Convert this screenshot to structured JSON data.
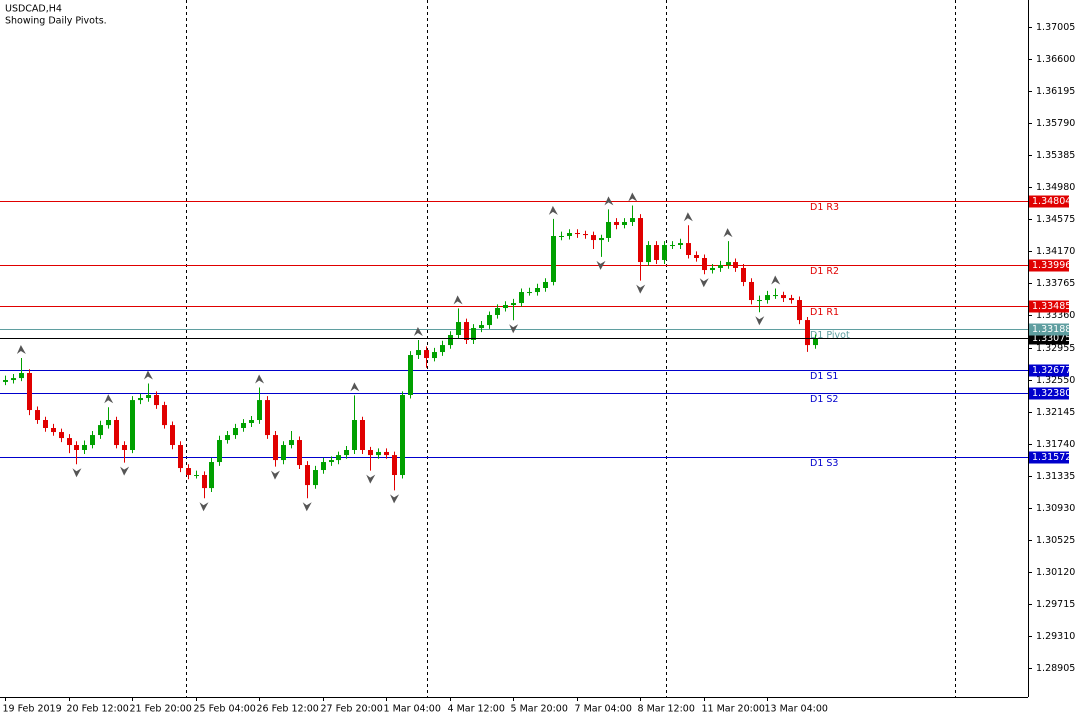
{
  "chart_data": {
    "type": "candlestick",
    "title": "USDCAD,H4",
    "subtitle": "Showing Daily Pivots.",
    "ylim": [
      1.28539,
      1.37346
    ],
    "yticks": [
      1.37005,
      {
        "value": 1.366,
        "label": "1.36600"
      },
      1.36195,
      {
        "value": 1.3579,
        "label": "1.35790"
      },
      1.35385,
      {
        "value": 1.3498,
        "label": "1.34980"
      },
      1.34575,
      {
        "value": 1.3417,
        "label": "1.34170"
      },
      1.33765,
      {
        "value": 1.3336,
        "label": "1.33360"
      },
      1.32955,
      {
        "value": 1.3255,
        "label": "1.32550"
      },
      1.32145,
      {
        "value": 1.3174,
        "label": "1.31740"
      },
      1.31335,
      {
        "value": 1.3093,
        "label": "1.30930"
      },
      1.30525,
      {
        "value": 1.3012,
        "label": "1.30120"
      },
      1.29715,
      {
        "value": 1.2931,
        "label": "1.29310"
      },
      1.28905
    ],
    "bull_color": "#00a000",
    "bear_color": "#e00000",
    "categories": [
      "19 Feb 2019",
      null,
      null,
      null,
      null,
      null,
      null,
      null,
      "20 Feb 12:00",
      null,
      null,
      null,
      null,
      null,
      null,
      null,
      "21 Feb 20:00",
      null,
      null,
      null,
      null,
      null,
      null,
      null,
      "25 Feb 04:00",
      null,
      null,
      null,
      null,
      null,
      null,
      null,
      "26 Feb 12:00",
      null,
      null,
      null,
      null,
      null,
      null,
      null,
      "27 Feb 20:00",
      null,
      null,
      null,
      null,
      null,
      null,
      null,
      "1 Mar 04:00",
      null,
      null,
      null,
      null,
      null,
      null,
      null,
      "4 Mar 12:00",
      null,
      null,
      null,
      null,
      null,
      null,
      null,
      "5 Mar 20:00",
      null,
      null,
      null,
      null,
      null,
      null,
      null,
      "7 Mar 04:00",
      null,
      null,
      null,
      null,
      null,
      null,
      null,
      "8 Mar 12:00",
      null,
      null,
      null,
      null,
      null,
      null,
      null,
      "11 Mar 20:00",
      null,
      null,
      null,
      null,
      null,
      null,
      null,
      "13 Mar 04:00",
      null,
      null,
      null,
      null,
      null,
      null
    ],
    "open": [
      1.3252,
      1.32544,
      1.32569,
      1.32633,
      1.32165,
      1.32039,
      1.31938,
      1.31887,
      1.31811,
      1.31723,
      1.3166,
      1.31723,
      1.31849,
      1.31975,
      1.32039,
      1.31723,
      1.3166,
      1.32291,
      1.32317,
      1.32355,
      1.32228,
      1.31975,
      1.31723,
      1.31432,
      1.31344,
      1.31344,
      1.31179,
      1.31508,
      1.31786,
      1.31849,
      1.31938,
      1.32001,
      1.32039,
      1.32291,
      1.31849,
      1.31533,
      1.31723,
      1.31786,
      1.3147,
      1.31217,
      1.31407,
      1.31508,
      1.31533,
      1.31596,
      1.3166,
      1.32039,
      1.3166,
      1.31596,
      1.31635,
      1.31596,
      1.31344,
      1.32355,
      1.3286,
      1.32923,
      1.32822,
      1.32898,
      1.32986,
      1.33113,
      1.33277,
      1.3305,
      1.33201,
      1.33239,
      1.33366,
      1.33454,
      1.33492,
      1.33517,
      1.33656,
      1.33656,
      1.33707,
      1.33783,
      1.34364,
      1.34364,
      1.34402,
      1.34389,
      1.34376,
      1.34313,
      1.34339,
      1.34541,
      1.34503,
      1.34541,
      1.34591,
      1.34035,
      1.3425,
      1.34061,
      1.3425,
      1.3425,
      1.34275,
      1.34124,
      1.34086,
      1.33934,
      1.3396,
      1.33997,
      1.34035,
      1.3396,
      1.33783,
      1.33555,
      1.33555,
      1.33618,
      1.33618,
      1.3358,
      1.33555,
      1.33302,
      1.32986
    ],
    "high": [
      1.326,
      1.3262,
      1.32822,
      1.3268,
      1.3221,
      1.3208,
      1.3199,
      1.3193,
      1.3186,
      1.3177,
      1.3178,
      1.319,
      1.3203,
      1.322,
      1.3208,
      1.3177,
      1.3234,
      1.3237,
      1.325,
      1.324,
      1.3227,
      1.3202,
      1.3177,
      1.3148,
      1.314,
      1.3139,
      1.3156,
      1.3184,
      1.319,
      1.3199,
      1.3205,
      1.3209,
      1.3245,
      1.3234,
      1.319,
      1.3177,
      1.319,
      1.3183,
      1.3152,
      1.3146,
      1.3156,
      1.3158,
      1.3164,
      1.3171,
      1.3235,
      1.3208,
      1.317,
      1.3168,
      1.3168,
      1.3164,
      1.324,
      1.3291,
      1.3305,
      1.3297,
      1.3295,
      1.3304,
      1.3316,
      1.3345,
      1.3332,
      1.3325,
      1.3329,
      1.3341,
      1.335,
      1.3354,
      1.3357,
      1.337,
      1.3371,
      1.3376,
      1.3383,
      1.3458,
      1.3442,
      1.3445,
      1.3445,
      1.3443,
      1.3442,
      1.3438,
      1.347,
      1.3459,
      1.3459,
      1.3475,
      1.3464,
      1.343,
      1.343,
      1.343,
      1.343,
      1.3433,
      1.345,
      1.3417,
      1.3413,
      1.3401,
      1.3405,
      1.343,
      1.3408,
      1.3401,
      1.3383,
      1.3361,
      1.3367,
      1.337,
      1.3366,
      1.3362,
      1.336,
      1.3334,
      1.3312
    ],
    "low": [
      1.3248,
      1.325,
      1.3253,
      1.321,
      1.3199,
      1.3189,
      1.3184,
      1.3176,
      1.3162,
      1.3148,
      1.3161,
      1.3168,
      1.318,
      1.3193,
      1.3168,
      1.315,
      1.3162,
      1.3224,
      1.3227,
      1.3218,
      1.3193,
      1.3167,
      1.3138,
      1.3129,
      1.313,
      1.3105,
      1.3113,
      1.3146,
      1.3174,
      1.318,
      1.3189,
      1.3195,
      1.3199,
      1.318,
      1.3145,
      1.3148,
      1.3168,
      1.3142,
      1.3105,
      1.3117,
      1.3136,
      1.3146,
      1.3148,
      1.3155,
      1.3161,
      1.3161,
      1.314,
      1.3155,
      1.3155,
      1.3115,
      1.313,
      1.3231,
      1.3281,
      1.327,
      1.3278,
      1.3285,
      1.3294,
      1.3307,
      1.33,
      1.33,
      1.3315,
      1.3319,
      1.3332,
      1.3341,
      1.333,
      1.3347,
      1.3361,
      1.3361,
      1.3366,
      1.3374,
      1.3431,
      1.3432,
      1.3434,
      1.3433,
      1.342,
      1.341,
      1.3429,
      1.3445,
      1.3446,
      1.3449,
      1.338,
      1.3399,
      1.3401,
      1.3401,
      1.342,
      1.342,
      1.3408,
      1.3404,
      1.3388,
      1.3389,
      1.3391,
      1.3395,
      1.3391,
      1.3373,
      1.335,
      1.334,
      1.3351,
      1.3357,
      1.3353,
      1.3351,
      1.3325,
      1.329,
      1.3294
    ],
    "close": [
      1.32544,
      1.32569,
      1.32633,
      1.32165,
      1.32039,
      1.31938,
      1.31887,
      1.31811,
      1.31723,
      1.3166,
      1.31723,
      1.31849,
      1.31975,
      1.32039,
      1.31723,
      1.3166,
      1.32291,
      1.32317,
      1.32355,
      1.32228,
      1.31975,
      1.31723,
      1.31432,
      1.31344,
      1.31344,
      1.31179,
      1.31508,
      1.31786,
      1.31849,
      1.31938,
      1.32001,
      1.32039,
      1.32291,
      1.31849,
      1.31533,
      1.31723,
      1.31786,
      1.3147,
      1.31217,
      1.31407,
      1.31508,
      1.31533,
      1.31596,
      1.3166,
      1.32039,
      1.3166,
      1.31596,
      1.31635,
      1.31596,
      1.31344,
      1.32355,
      1.3286,
      1.32923,
      1.32822,
      1.32898,
      1.32986,
      1.33113,
      1.33277,
      1.3305,
      1.33201,
      1.33239,
      1.33366,
      1.33454,
      1.33492,
      1.33517,
      1.33656,
      1.33656,
      1.33707,
      1.33783,
      1.34364,
      1.34364,
      1.34402,
      1.34389,
      1.34376,
      1.34313,
      1.34339,
      1.34541,
      1.34503,
      1.34541,
      1.34591,
      1.34035,
      1.3425,
      1.34061,
      1.3425,
      1.3425,
      1.34275,
      1.34124,
      1.34086,
      1.33934,
      1.3396,
      1.33997,
      1.34035,
      1.3396,
      1.33783,
      1.33555,
      1.33555,
      1.33618,
      1.33618,
      1.3358,
      1.33555,
      1.33302,
      1.32986,
      1.33075
    ],
    "pivots": [
      {
        "name": "D1 R3",
        "value": 1.34804,
        "color": "#e00000"
      },
      {
        "name": "D1 R2",
        "value": 1.33996,
        "color": "#e00000"
      },
      {
        "name": "D1 R1",
        "value": 1.33485,
        "color": "#e00000"
      },
      {
        "name": "D1 Pivot",
        "value": 1.33188,
        "color": "#5f9ea0"
      },
      {
        "name": "D1 S1",
        "value": 1.32677,
        "color": "#0000cc"
      },
      {
        "name": "D1 S2",
        "value": 1.3238,
        "value_label": "1.32380",
        "color": "#0000cc"
      },
      {
        "name": "D1 S3",
        "value": 1.31572,
        "color": "#0000cc"
      }
    ]
  }
}
